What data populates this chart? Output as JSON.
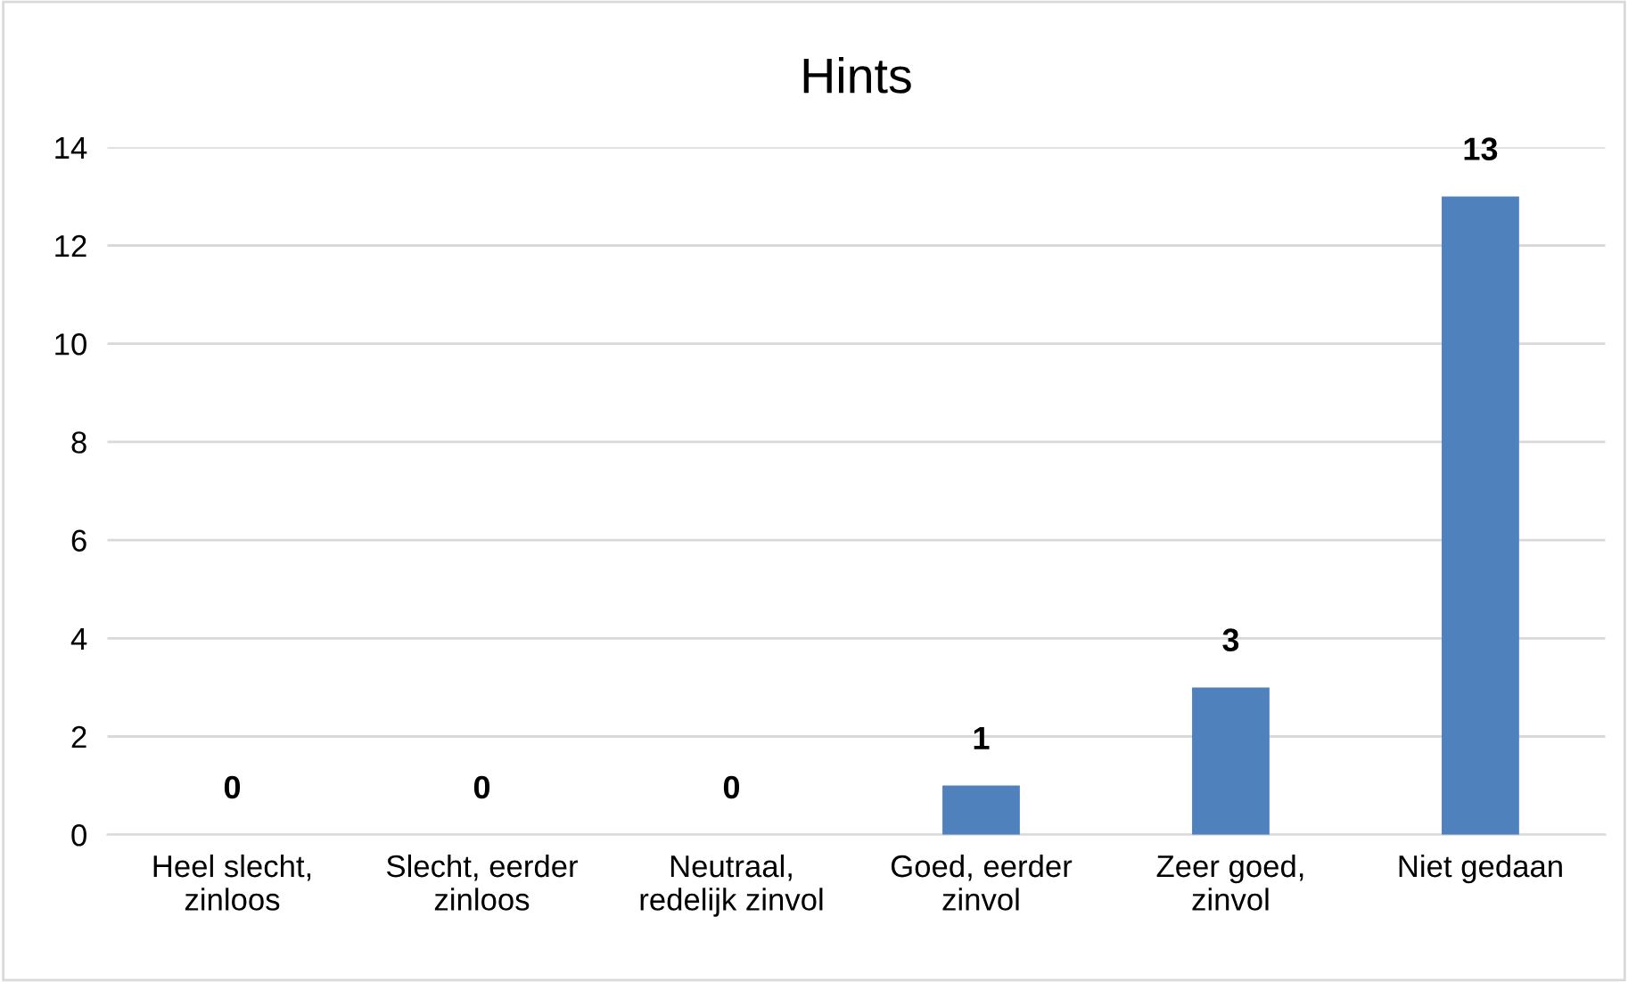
{
  "chart_data": {
    "type": "bar",
    "title": "Hints",
    "categories": [
      "Heel slecht, zinloos",
      "Slecht, eerder zinloos",
      "Neutraal, redelijk zinvol",
      "Goed, eerder zinvol",
      "Zeer goed, zinvol",
      "Niet gedaan"
    ],
    "values": [
      0,
      0,
      0,
      1,
      3,
      13
    ],
    "color": "#4f81bd",
    "ylim": [
      0,
      14
    ],
    "yticks": [
      0,
      2,
      4,
      6,
      8,
      10,
      12,
      14
    ],
    "grid": "y",
    "data_labels": true,
    "legend": false
  }
}
